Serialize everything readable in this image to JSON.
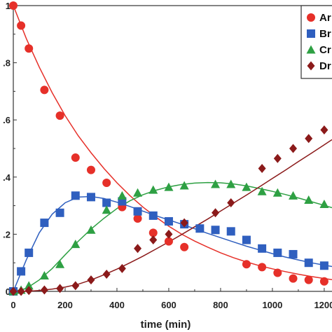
{
  "chart_data": {
    "type": "scatter",
    "title": "",
    "xlabel": "time (min)",
    "ylabel": "",
    "xlim": [
      0,
      1230
    ],
    "ylim": [
      0,
      1.0
    ],
    "xticks": [
      "0",
      "200",
      "400",
      "600",
      "800",
      "1000",
      "1200"
    ],
    "xtick_values": [
      0,
      200,
      400,
      600,
      800,
      1000,
      1200
    ],
    "yticks": [
      "0",
      ".2",
      ".4",
      ".6",
      ".8",
      "1"
    ],
    "ytick_values": [
      0,
      0.2,
      0.4,
      0.6,
      0.8,
      1.0
    ],
    "grid": false,
    "legend_position": "top-right",
    "series": [
      {
        "name": "Ar",
        "color": "#e63029",
        "marker": "circle",
        "x": [
          0,
          30,
          60,
          120,
          180,
          240,
          300,
          360,
          420,
          480,
          540,
          600,
          660,
          900,
          960,
          1020,
          1080,
          1140,
          1200
        ],
        "y": [
          1.0,
          0.93,
          0.85,
          0.705,
          0.615,
          0.468,
          0.425,
          0.38,
          0.295,
          0.255,
          0.205,
          0.175,
          0.155,
          0.095,
          0.085,
          0.065,
          0.045,
          0.04,
          0.035
        ],
        "fit": [
          [
            0,
            1.0
          ],
          [
            50,
            0.885
          ],
          [
            100,
            0.785
          ],
          [
            150,
            0.695
          ],
          [
            200,
            0.615
          ],
          [
            250,
            0.545
          ],
          [
            300,
            0.485
          ],
          [
            350,
            0.43
          ],
          [
            400,
            0.38
          ],
          [
            450,
            0.335
          ],
          [
            500,
            0.295
          ],
          [
            550,
            0.26
          ],
          [
            600,
            0.228
          ],
          [
            650,
            0.2
          ],
          [
            700,
            0.176
          ],
          [
            750,
            0.155
          ],
          [
            800,
            0.135
          ],
          [
            850,
            0.118
          ],
          [
            900,
            0.103
          ],
          [
            950,
            0.09
          ],
          [
            1000,
            0.079
          ],
          [
            1050,
            0.069
          ],
          [
            1100,
            0.06
          ],
          [
            1150,
            0.052
          ],
          [
            1200,
            0.045
          ],
          [
            1230,
            0.041
          ]
        ]
      },
      {
        "name": "Br",
        "color": "#2f5fbf",
        "marker": "square",
        "x": [
          0,
          30,
          60,
          120,
          180,
          240,
          300,
          360,
          420,
          480,
          540,
          600,
          660,
          720,
          780,
          840,
          900,
          960,
          1020,
          1080,
          1140,
          1200
        ],
        "y": [
          0.0,
          0.07,
          0.135,
          0.24,
          0.275,
          0.335,
          0.33,
          0.31,
          0.315,
          0.28,
          0.265,
          0.245,
          0.235,
          0.22,
          0.215,
          0.21,
          0.18,
          0.15,
          0.135,
          0.13,
          0.1,
          0.09
        ],
        "fit": [
          [
            0,
            0.0
          ],
          [
            50,
            0.11
          ],
          [
            100,
            0.205
          ],
          [
            150,
            0.27
          ],
          [
            200,
            0.31
          ],
          [
            250,
            0.33
          ],
          [
            300,
            0.332
          ],
          [
            350,
            0.325
          ],
          [
            400,
            0.312
          ],
          [
            450,
            0.297
          ],
          [
            500,
            0.281
          ],
          [
            550,
            0.265
          ],
          [
            600,
            0.25
          ],
          [
            650,
            0.235
          ],
          [
            700,
            0.219
          ],
          [
            750,
            0.203
          ],
          [
            800,
            0.188
          ],
          [
            850,
            0.173
          ],
          [
            900,
            0.158
          ],
          [
            950,
            0.145
          ],
          [
            1000,
            0.132
          ],
          [
            1050,
            0.12
          ],
          [
            1100,
            0.11
          ],
          [
            1150,
            0.1
          ],
          [
            1200,
            0.092
          ],
          [
            1230,
            0.087
          ]
        ]
      },
      {
        "name": "Cr",
        "color": "#2ea043",
        "marker": "triangle",
        "x": [
          0,
          30,
          60,
          120,
          180,
          240,
          300,
          360,
          420,
          480,
          540,
          600,
          660,
          780,
          840,
          900,
          960,
          1020,
          1080,
          1140,
          1200
        ],
        "y": [
          0.0,
          0.005,
          0.02,
          0.055,
          0.095,
          0.165,
          0.215,
          0.285,
          0.335,
          0.345,
          0.355,
          0.365,
          0.37,
          0.375,
          0.375,
          0.365,
          0.35,
          0.345,
          0.335,
          0.32,
          0.305
        ],
        "fit": [
          [
            0,
            0.0
          ],
          [
            50,
            0.01
          ],
          [
            100,
            0.04
          ],
          [
            150,
            0.08
          ],
          [
            200,
            0.128
          ],
          [
            250,
            0.175
          ],
          [
            300,
            0.218
          ],
          [
            350,
            0.256
          ],
          [
            400,
            0.29
          ],
          [
            450,
            0.317
          ],
          [
            500,
            0.338
          ],
          [
            550,
            0.354
          ],
          [
            600,
            0.366
          ],
          [
            650,
            0.374
          ],
          [
            700,
            0.379
          ],
          [
            750,
            0.381
          ],
          [
            800,
            0.38
          ],
          [
            850,
            0.376
          ],
          [
            900,
            0.369
          ],
          [
            950,
            0.36
          ],
          [
            1000,
            0.35
          ],
          [
            1050,
            0.339
          ],
          [
            1100,
            0.327
          ],
          [
            1150,
            0.314
          ],
          [
            1200,
            0.301
          ],
          [
            1230,
            0.293
          ]
        ]
      },
      {
        "name": "Dr",
        "color": "#8b1a1a",
        "marker": "diamond",
        "x": [
          0,
          30,
          60,
          120,
          180,
          240,
          300,
          360,
          420,
          480,
          540,
          600,
          660,
          780,
          840,
          960,
          1020,
          1080,
          1140,
          1200
        ],
        "y": [
          0.0,
          0.0,
          0.003,
          0.005,
          0.01,
          0.02,
          0.04,
          0.06,
          0.08,
          0.15,
          0.18,
          0.2,
          0.24,
          0.275,
          0.31,
          0.43,
          0.465,
          0.5,
          0.535,
          0.565
        ],
        "fit": [
          [
            0,
            0.0
          ],
          [
            50,
            0.0
          ],
          [
            100,
            0.003
          ],
          [
            150,
            0.008
          ],
          [
            200,
            0.015
          ],
          [
            250,
            0.025
          ],
          [
            300,
            0.04
          ],
          [
            350,
            0.058
          ],
          [
            400,
            0.078
          ],
          [
            450,
            0.1
          ],
          [
            500,
            0.123
          ],
          [
            550,
            0.148
          ],
          [
            600,
            0.173
          ],
          [
            650,
            0.199
          ],
          [
            700,
            0.226
          ],
          [
            750,
            0.253
          ],
          [
            800,
            0.281
          ],
          [
            850,
            0.309
          ],
          [
            900,
            0.337
          ],
          [
            950,
            0.366
          ],
          [
            1000,
            0.395
          ],
          [
            1050,
            0.424
          ],
          [
            1100,
            0.454
          ],
          [
            1150,
            0.483
          ],
          [
            1200,
            0.513
          ],
          [
            1230,
            0.531
          ]
        ]
      }
    ]
  }
}
